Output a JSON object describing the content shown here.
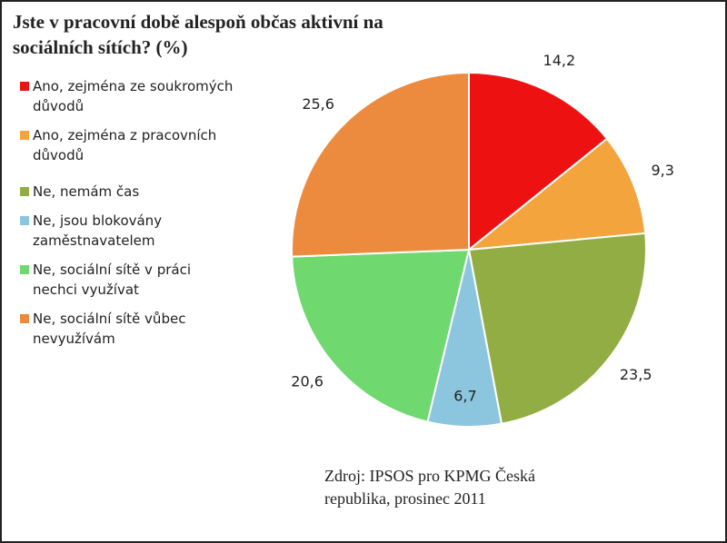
{
  "chart_data": {
    "type": "pie",
    "title": "Jste v pracovní době alespoň občas aktivní na sociálních sítích? (%)",
    "source": "Zdroj: IPSOS pro KPMG Česká republika, prosinec 2011",
    "categories": [
      "Ano, zejména ze soukromých důvodů",
      "Ano, zejména z pracovních důvodů",
      "Ne, nemám čas",
      "Ne, jsou blokovány zaměstnavatelem",
      "Ne, sociální sítě v práci nechci využívat",
      "Ne, sociální sítě vůbec nevyužívám"
    ],
    "values": [
      14.2,
      9.3,
      23.5,
      6.7,
      20.6,
      25.6
    ],
    "value_labels": [
      "14,2",
      "9,3",
      "23,5",
      "6,7",
      "20,6",
      "25,6"
    ],
    "colors": [
      "#ee1111",
      "#f3a43c",
      "#93ad45",
      "#8cc6de",
      "#6fd86f",
      "#ec8b3e"
    ]
  }
}
